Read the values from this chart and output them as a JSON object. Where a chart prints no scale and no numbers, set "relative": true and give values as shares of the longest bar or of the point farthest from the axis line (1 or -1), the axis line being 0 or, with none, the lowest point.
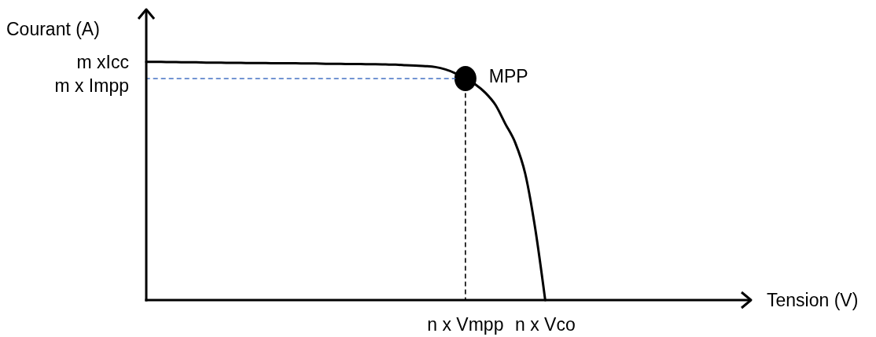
{
  "chart_data": {
    "type": "line",
    "relative": true,
    "xlabel": "Tension (V)",
    "ylabel": "Courant (A)",
    "categories": [
      null,
      null,
      null,
      null,
      null,
      null,
      null,
      null,
      null,
      null,
      null,
      null,
      null,
      null,
      null,
      null,
      null,
      null,
      null,
      null,
      null,
      null,
      null,
      null,
      null,
      null,
      null,
      null,
      null,
      null,
      null,
      null,
      "n x Vmpp",
      null,
      null,
      null,
      null,
      null,
      null,
      null,
      "n x Vco",
      null,
      null,
      null,
      null,
      null,
      null,
      null,
      null,
      null,
      null,
      null,
      null,
      null,
      null,
      null,
      null,
      null,
      null,
      null,
      null
    ],
    "annotations": [
      "m xIcc",
      "m x Impp"
    ],
    "series": [
      {
        "type": "line",
        "color": "#000000",
        "values": [
          1,
          1,
          0.999,
          0.999,
          0.998,
          0.998,
          0.997,
          0.997,
          0.996,
          0.996,
          0.995,
          0.995,
          0.995,
          0.994,
          0.994,
          0.994,
          0.993,
          0.993,
          0.992,
          0.992,
          0.991,
          0.991,
          0.99,
          0.99,
          0.989,
          0.988,
          0.986,
          0.984,
          0.982,
          0.978,
          0.968,
          0.952,
          0.93,
          0.905,
          0.87,
          0.82,
          0.74,
          0.66,
          0.53,
          0.3,
          0,
          null,
          null,
          null,
          null,
          null,
          null,
          null,
          null,
          null,
          null,
          null,
          null,
          null,
          null,
          null,
          null,
          null,
          null,
          null,
          null
        ]
      },
      {
        "type": "line",
        "color": "#4472c4",
        "line_style": "dashed",
        "values": [
          0.93,
          0.93,
          0.93,
          0.93,
          0.93,
          0.93,
          0.93,
          0.93,
          0.93,
          0.93,
          0.93,
          0.93,
          0.93,
          0.93,
          0.93,
          0.93,
          0.93,
          0.93,
          0.93,
          0.93,
          0.93,
          0.93,
          0.93,
          0.93,
          0.93,
          0.93,
          0.93,
          0.93,
          0.93,
          0.93,
          0.93,
          0.93,
          null,
          null,
          null,
          null,
          null,
          null,
          null,
          null,
          null,
          null,
          null,
          null,
          null,
          null,
          null,
          null,
          null,
          null,
          null,
          null,
          null,
          null,
          null,
          null,
          null,
          null,
          null,
          null,
          null
        ]
      },
      {
        "type": "lollipop",
        "name": "MPP",
        "color": "#000000",
        "line_style": "dashed",
        "marker": "circle",
        "values": [
          null,
          null,
          null,
          null,
          null,
          null,
          null,
          null,
          null,
          null,
          null,
          null,
          null,
          null,
          null,
          null,
          null,
          null,
          null,
          null,
          null,
          null,
          null,
          null,
          null,
          null,
          null,
          null,
          null,
          null,
          null,
          null,
          0.93,
          null,
          null,
          null,
          null,
          null,
          null,
          null,
          null,
          null,
          null,
          null,
          null,
          null,
          null,
          null,
          null,
          null,
          null,
          null,
          null,
          null,
          null,
          null,
          null,
          null,
          null,
          null,
          null
        ]
      }
    ]
  }
}
